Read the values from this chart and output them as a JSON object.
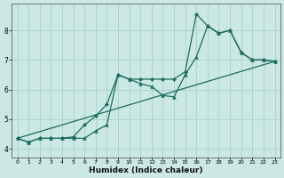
{
  "xlabel": "Humidex (Indice chaleur)",
  "bg_color": "#cce8e4",
  "grid_color": "#aad4ce",
  "line_color": "#1a6b5e",
  "xlim": [
    -0.5,
    23.5
  ],
  "ylim": [
    3.7,
    8.9
  ],
  "xticks": [
    0,
    1,
    2,
    3,
    4,
    5,
    6,
    7,
    8,
    9,
    10,
    11,
    12,
    13,
    14,
    15,
    16,
    17,
    18,
    19,
    20,
    21,
    22,
    23
  ],
  "yticks": [
    4,
    5,
    6,
    7,
    8
  ],
  "line1_x": [
    0,
    1,
    2,
    3,
    4,
    5,
    6,
    7,
    8,
    9,
    10,
    11,
    12,
    13,
    14,
    15,
    16,
    17,
    18,
    19,
    20,
    21,
    22,
    23
  ],
  "line1_y": [
    4.35,
    4.22,
    4.35,
    4.35,
    4.35,
    4.35,
    4.35,
    4.6,
    4.8,
    6.5,
    6.35,
    6.2,
    6.1,
    5.8,
    5.75,
    6.5,
    7.1,
    8.15,
    7.9,
    8.0,
    7.25,
    7.0,
    7.0,
    6.95
  ],
  "line2_x": [
    0,
    1,
    2,
    3,
    4,
    5,
    6,
    7,
    8,
    9,
    10,
    11,
    12,
    13,
    14,
    15,
    16,
    17,
    18,
    19,
    20,
    21,
    22,
    23
  ],
  "line2_y": [
    4.35,
    4.22,
    4.35,
    4.35,
    4.35,
    4.4,
    4.8,
    5.1,
    5.5,
    6.5,
    6.35,
    6.35,
    6.35,
    6.35,
    6.35,
    6.6,
    8.55,
    8.15,
    7.9,
    8.0,
    7.25,
    7.0,
    7.0,
    6.95
  ],
  "line3_x": [
    0,
    23
  ],
  "line3_y": [
    4.35,
    6.95
  ]
}
